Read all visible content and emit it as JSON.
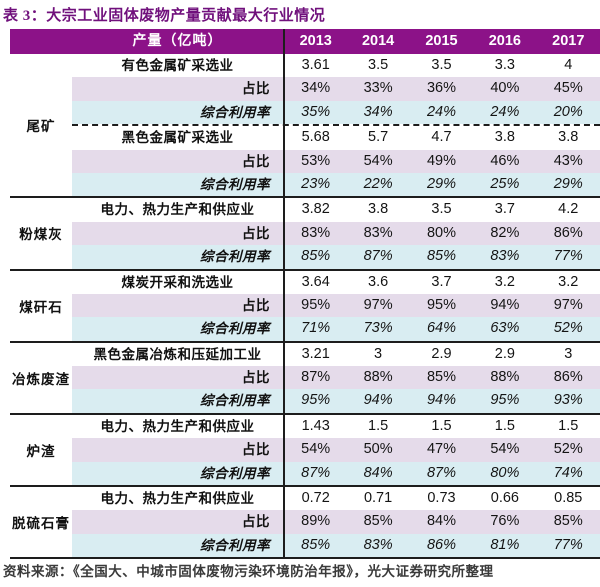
{
  "title": "表 3：大宗工业固体废物产量贡献最大行业情况",
  "colors": {
    "header_bg": "#8C1288",
    "title_text": "#70107C",
    "share_row_bg": "#E5DBEA",
    "utilization_row_bg": "#D9EDF2"
  },
  "table": {
    "header": {
      "label": "产量（亿吨）",
      "years": [
        "2013",
        "2014",
        "2015",
        "2016",
        "2017"
      ]
    },
    "row_labels": {
      "share": "占比",
      "utilization": "综合利用率"
    },
    "groups": [
      {
        "name": "尾矿",
        "blocks": [
          {
            "industry": "有色金属矿采选业",
            "output": [
              "3.61",
              "3.5",
              "3.5",
              "3.3",
              "4"
            ],
            "share": [
              "34%",
              "33%",
              "36%",
              "40%",
              "45%"
            ],
            "utilization": [
              "35%",
              "34%",
              "24%",
              "24%",
              "20%"
            ]
          },
          {
            "industry": "黑色金属矿采选业",
            "output": [
              "5.68",
              "5.7",
              "4.7",
              "3.8",
              "3.8"
            ],
            "share": [
              "53%",
              "54%",
              "49%",
              "46%",
              "43%"
            ],
            "utilization": [
              "23%",
              "22%",
              "29%",
              "25%",
              "29%"
            ]
          }
        ]
      },
      {
        "name": "粉煤灰",
        "blocks": [
          {
            "industry": "电力、热力生产和供应业",
            "output": [
              "3.82",
              "3.8",
              "3.5",
              "3.7",
              "4.2"
            ],
            "share": [
              "83%",
              "83%",
              "80%",
              "82%",
              "86%"
            ],
            "utilization": [
              "85%",
              "87%",
              "85%",
              "83%",
              "77%"
            ]
          }
        ]
      },
      {
        "name": "煤矸石",
        "blocks": [
          {
            "industry": "煤炭开采和洗选业",
            "output": [
              "3.64",
              "3.6",
              "3.7",
              "3.2",
              "3.2"
            ],
            "share": [
              "95%",
              "97%",
              "95%",
              "94%",
              "97%"
            ],
            "utilization": [
              "71%",
              "73%",
              "64%",
              "63%",
              "52%"
            ]
          }
        ]
      },
      {
        "name": "冶炼废渣",
        "blocks": [
          {
            "industry": "黑色金属冶炼和压延加工业",
            "output": [
              "3.21",
              "3",
              "2.9",
              "2.9",
              "3"
            ],
            "share": [
              "87%",
              "88%",
              "85%",
              "88%",
              "86%"
            ],
            "utilization": [
              "95%",
              "94%",
              "94%",
              "95%",
              "93%"
            ]
          }
        ]
      },
      {
        "name": "炉渣",
        "blocks": [
          {
            "industry": "电力、热力生产和供应业",
            "output": [
              "1.43",
              "1.5",
              "1.5",
              "1.5",
              "1.5"
            ],
            "share": [
              "54%",
              "50%",
              "47%",
              "54%",
              "52%"
            ],
            "utilization": [
              "87%",
              "84%",
              "87%",
              "80%",
              "74%"
            ]
          }
        ]
      },
      {
        "name": "脱硫石膏",
        "blocks": [
          {
            "industry": "电力、热力生产和供应业",
            "output": [
              "0.72",
              "0.71",
              "0.73",
              "0.66",
              "0.85"
            ],
            "share": [
              "89%",
              "85%",
              "84%",
              "76%",
              "85%"
            ],
            "utilization": [
              "85%",
              "83%",
              "86%",
              "81%",
              "77%"
            ]
          }
        ]
      }
    ]
  },
  "footer": "资料来源：《全国大、中城市固体废物污染环境防治年报》，光大证券研究所整理"
}
